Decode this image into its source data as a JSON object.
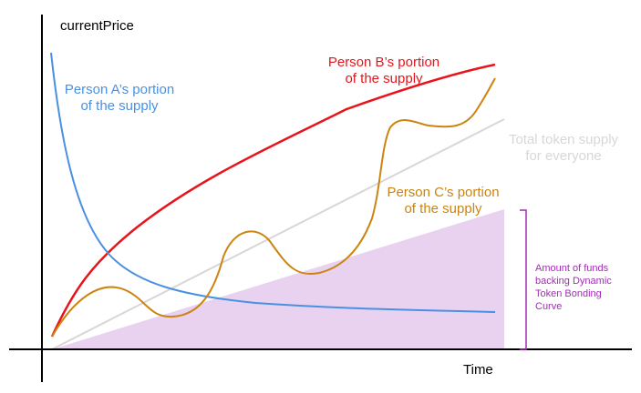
{
  "chart_data": {
    "type": "line",
    "ylabel": "currentPrice",
    "xlabel": "Time",
    "colors": {
      "axis": "#000000",
      "person_a": "#4a90e2",
      "person_b": "#e8141b",
      "person_c": "#cc8410",
      "total_supply": "#d7d7d7",
      "funds_area": "#e8d2f0",
      "funds_bracket": "#a02eb4"
    },
    "annotations": {
      "person_a": [
        "Person A’s portion",
        "of the supply"
      ],
      "person_b": [
        "Person B’s portion",
        "of the supply"
      ],
      "person_c": [
        "Person C’s portion",
        "of the supply"
      ],
      "total_supply": [
        "Total token supply",
        "for everyone"
      ],
      "funds": [
        "Amount of funds",
        "backing Dynamic",
        "Token Bonding",
        "Curve"
      ]
    }
  }
}
